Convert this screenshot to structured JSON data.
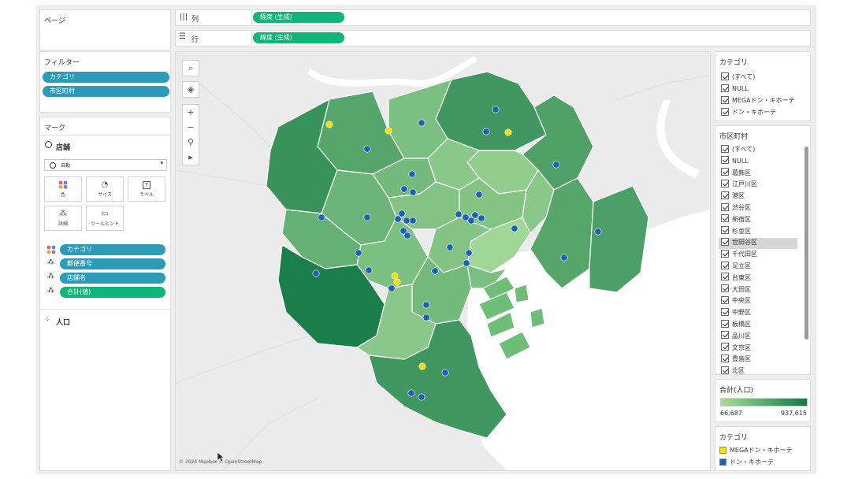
{
  "pages": {
    "title": "ページ"
  },
  "shelves": {
    "columns": {
      "label": "列",
      "pill": "経度 (生成)"
    },
    "rows": {
      "label": "行",
      "pill": "緯度 (生成)"
    }
  },
  "filters": {
    "title": "フィルター",
    "items": [
      "カテゴリ",
      "市区町村"
    ]
  },
  "marks": {
    "title": "マーク",
    "layer": "店舗",
    "mark_type": "自動",
    "buttons": [
      "色",
      "サイズ",
      "ラベル",
      "詳細",
      "ツールヒント"
    ],
    "fields": [
      "カテゴリ",
      "郵便番号",
      "店舗名",
      "合計(値)"
    ],
    "extra_layer": "人口"
  },
  "category_filter": {
    "title": "カテゴリ",
    "items": [
      "(すべて)",
      "NULL",
      "MEGAドン・キホーテ",
      "ドン・キホーテ"
    ]
  },
  "city_filter": {
    "title": "市区町村",
    "items": [
      "(すべて)",
      "NULL",
      "葛飾区",
      "江戸川区",
      "港区",
      "渋谷区",
      "新宿区",
      "杉並区",
      "世田谷区",
      "千代田区",
      "足立区",
      "台東区",
      "大田区",
      "中央区",
      "中野区",
      "板橋区",
      "品川区",
      "文京区",
      "豊島区",
      "北区"
    ],
    "highlighted": "世田谷区"
  },
  "color_legend": {
    "title": "合計(人口)",
    "min": "66,687",
    "max": "937,615",
    "color_low": "#a8dc9a",
    "color_high": "#137a46"
  },
  "category_legend": {
    "title": "カテゴリ",
    "items": [
      {
        "label": "MEGAドン・キホーテ",
        "color": "#f2e20a"
      },
      {
        "label": "ドン・キホーテ",
        "color": "#1f5fb4"
      }
    ]
  },
  "map": {
    "attribution": "© 2024 Mapbox © OpenStreetMap",
    "tools": [
      "search-icon",
      "layers-icon",
      "zoom-in-icon",
      "zoom-out-icon",
      "pin-icon",
      "play-icon"
    ]
  }
}
